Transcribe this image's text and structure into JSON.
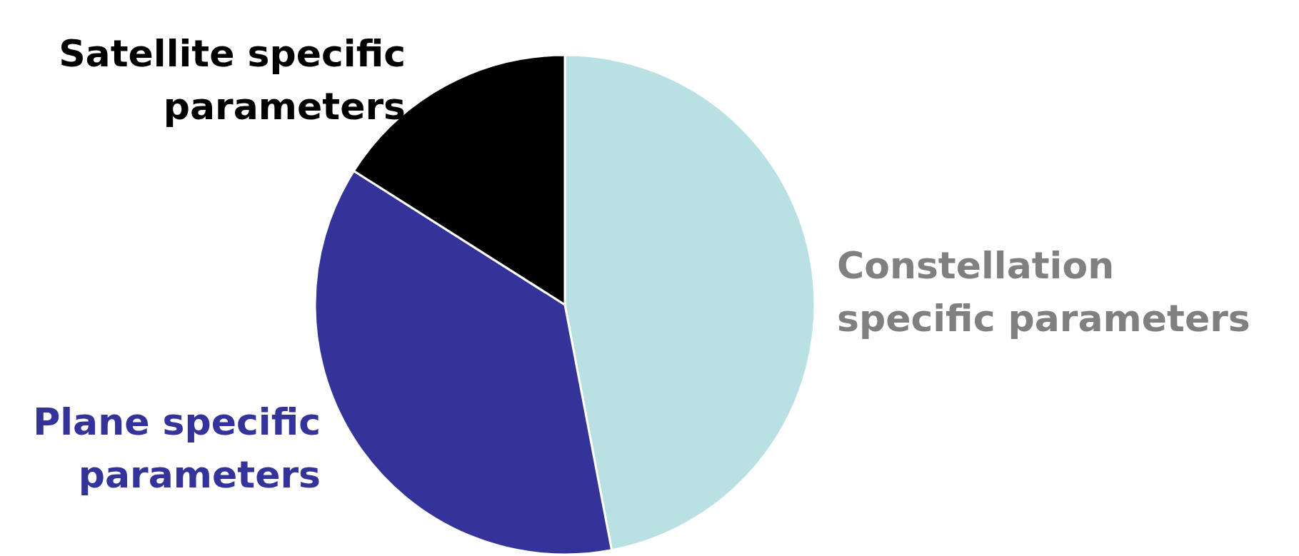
{
  "chart_data": {
    "type": "pie",
    "categories": [
      "Constellation specific parameters",
      "Plane specific parameters",
      "Satellite specific parameters"
    ],
    "values": [
      47,
      37,
      16
    ],
    "colors": [
      "#b9e0e3",
      "#333399",
      "#000000"
    ],
    "legend": false
  }
}
